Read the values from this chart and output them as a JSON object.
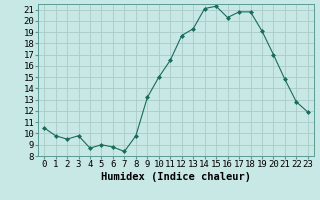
{
  "x": [
    0,
    1,
    2,
    3,
    4,
    5,
    6,
    7,
    8,
    9,
    10,
    11,
    12,
    13,
    14,
    15,
    16,
    17,
    18,
    19,
    20,
    21,
    22,
    23
  ],
  "y": [
    10.5,
    9.8,
    9.5,
    9.8,
    8.7,
    9.0,
    8.8,
    8.4,
    9.8,
    13.2,
    15.0,
    16.5,
    18.7,
    19.3,
    21.1,
    21.3,
    20.3,
    20.8,
    20.8,
    19.1,
    17.0,
    14.8,
    12.8,
    11.9
  ],
  "line_color": "#1a6b5a",
  "marker": "D",
  "marker_size": 2.0,
  "bg_color": "#c8e8e5",
  "grid_color": "#a8ccc9",
  "title": "",
  "xlabel": "Humidex (Indice chaleur)",
  "ylabel": "",
  "xlim": [
    -0.5,
    23.5
  ],
  "ylim": [
    8,
    21.5
  ],
  "yticks": [
    8,
    9,
    10,
    11,
    12,
    13,
    14,
    15,
    16,
    17,
    18,
    19,
    20,
    21
  ],
  "xticks": [
    0,
    1,
    2,
    3,
    4,
    5,
    6,
    7,
    8,
    9,
    10,
    11,
    12,
    13,
    14,
    15,
    16,
    17,
    18,
    19,
    20,
    21,
    22,
    23
  ],
  "tick_fontsize": 6.5,
  "xlabel_fontsize": 7.5
}
